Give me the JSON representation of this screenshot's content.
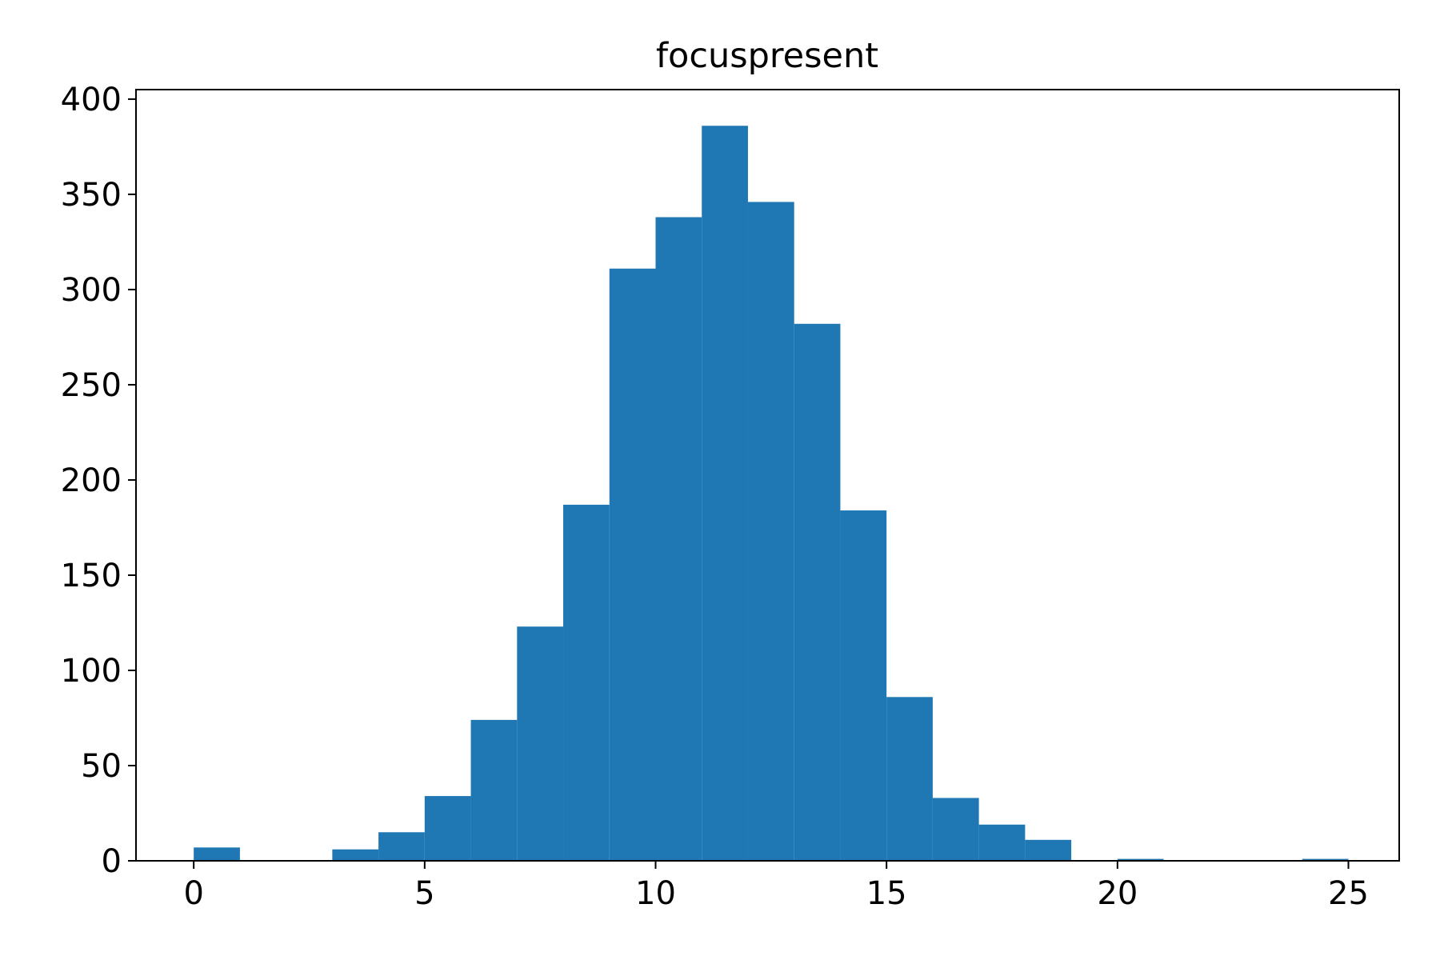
{
  "chart_data": {
    "type": "bar",
    "title": "focuspresent",
    "xlabel": "",
    "ylabel": "",
    "bar_color": "#1f77b4",
    "xlim": [
      -1.25,
      26.1
    ],
    "ylim": [
      0,
      405
    ],
    "x_ticks": [
      0,
      5,
      10,
      15,
      20,
      25
    ],
    "y_ticks": [
      0,
      50,
      100,
      150,
      200,
      250,
      300,
      350,
      400
    ],
    "bins": [
      {
        "x0": 0,
        "x1": 1,
        "value": 7
      },
      {
        "x0": 1,
        "x1": 2,
        "value": 0
      },
      {
        "x0": 2,
        "x1": 3,
        "value": 0
      },
      {
        "x0": 3,
        "x1": 4,
        "value": 6
      },
      {
        "x0": 4,
        "x1": 5,
        "value": 15
      },
      {
        "x0": 5,
        "x1": 6,
        "value": 34
      },
      {
        "x0": 6,
        "x1": 7,
        "value": 74
      },
      {
        "x0": 7,
        "x1": 8,
        "value": 123
      },
      {
        "x0": 8,
        "x1": 9,
        "value": 187
      },
      {
        "x0": 9,
        "x1": 10,
        "value": 311
      },
      {
        "x0": 10,
        "x1": 11,
        "value": 338
      },
      {
        "x0": 11,
        "x1": 12,
        "value": 386
      },
      {
        "x0": 12,
        "x1": 13,
        "value": 346
      },
      {
        "x0": 13,
        "x1": 14,
        "value": 282
      },
      {
        "x0": 14,
        "x1": 15,
        "value": 184
      },
      {
        "x0": 15,
        "x1": 16,
        "value": 86
      },
      {
        "x0": 16,
        "x1": 17,
        "value": 33
      },
      {
        "x0": 17,
        "x1": 18,
        "value": 19
      },
      {
        "x0": 18,
        "x1": 19,
        "value": 11
      },
      {
        "x0": 19,
        "x1": 20,
        "value": 0
      },
      {
        "x0": 20,
        "x1": 21,
        "value": 1
      },
      {
        "x0": 21,
        "x1": 22,
        "value": 0
      },
      {
        "x0": 22,
        "x1": 23,
        "value": 0
      },
      {
        "x0": 23,
        "x1": 24,
        "value": 0
      },
      {
        "x0": 24,
        "x1": 25,
        "value": 1
      }
    ]
  }
}
